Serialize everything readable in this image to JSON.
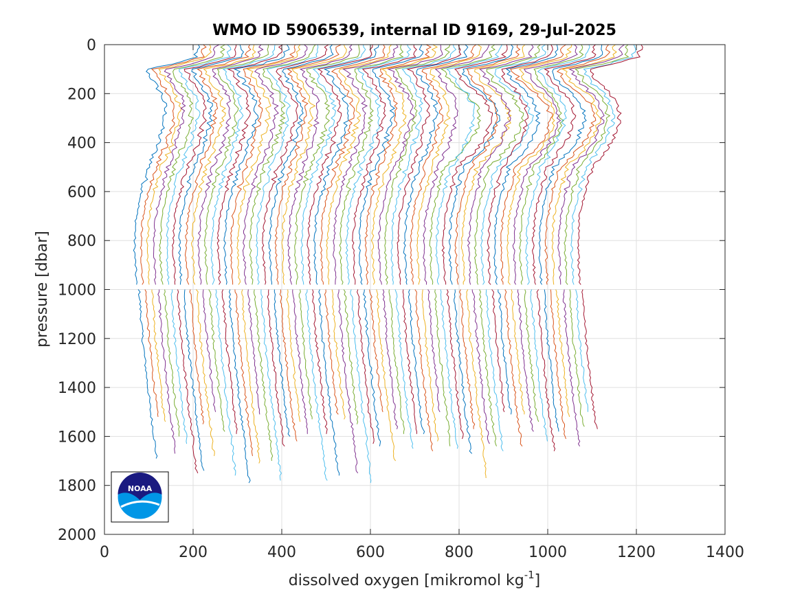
{
  "chart_data": {
    "type": "line",
    "title": "WMO ID 5906539, internal ID 9169, 29-Jul-2025",
    "xlabel": "dissolved oxygen [mikromol kg",
    "xlabel_sup": "-1",
    "xlabel_end": "]",
    "ylabel": "pressure [dbar]",
    "xlim": [
      0,
      1400
    ],
    "ylim": [
      0,
      2000
    ],
    "y_reversed": true,
    "x_ticks": [
      0,
      200,
      400,
      600,
      800,
      1000,
      1200,
      1400
    ],
    "y_ticks": [
      0,
      200,
      400,
      600,
      800,
      1000,
      1200,
      1400,
      1600,
      1800,
      2000
    ],
    "x_tick_labels": [
      "0",
      "200",
      "400",
      "600",
      "800",
      "1000",
      "1200",
      "1400"
    ],
    "y_tick_labels": [
      "0",
      "200",
      "400",
      "600",
      "800",
      "1000",
      "1200",
      "1400",
      "1600",
      "1800",
      "2000"
    ],
    "grid": true,
    "legend": "none",
    "description_of_series": "Waterfall of ~70 consecutive dissolved oxygen profiles, each offset horizontally by ~15 units; gap near 980-1000 dbar.",
    "series_count": 70,
    "offset_step": 14.5,
    "base_profile": {
      "pressure": [
        0,
        50,
        80,
        100,
        150,
        200,
        250,
        300,
        350,
        400,
        450,
        500,
        550,
        600,
        650,
        700,
        750,
        800,
        850,
        900,
        980,
        1000,
        1100,
        1200,
        1300,
        1400,
        1500,
        1600,
        1700,
        1800
      ],
      "oxygen": [
        210,
        205,
        150,
        95,
        110,
        125,
        130,
        128,
        120,
        115,
        108,
        100,
        92,
        85,
        78,
        72,
        70,
        68,
        68,
        70,
        72,
        78,
        82,
        86,
        92,
        98,
        104,
        112,
        118,
        125
      ]
    },
    "colors": [
      "#0072bd",
      "#d95319",
      "#edb120",
      "#7e2f8e",
      "#77ac30",
      "#4dbeee",
      "#a2142f"
    ],
    "logo": "NOAA"
  }
}
